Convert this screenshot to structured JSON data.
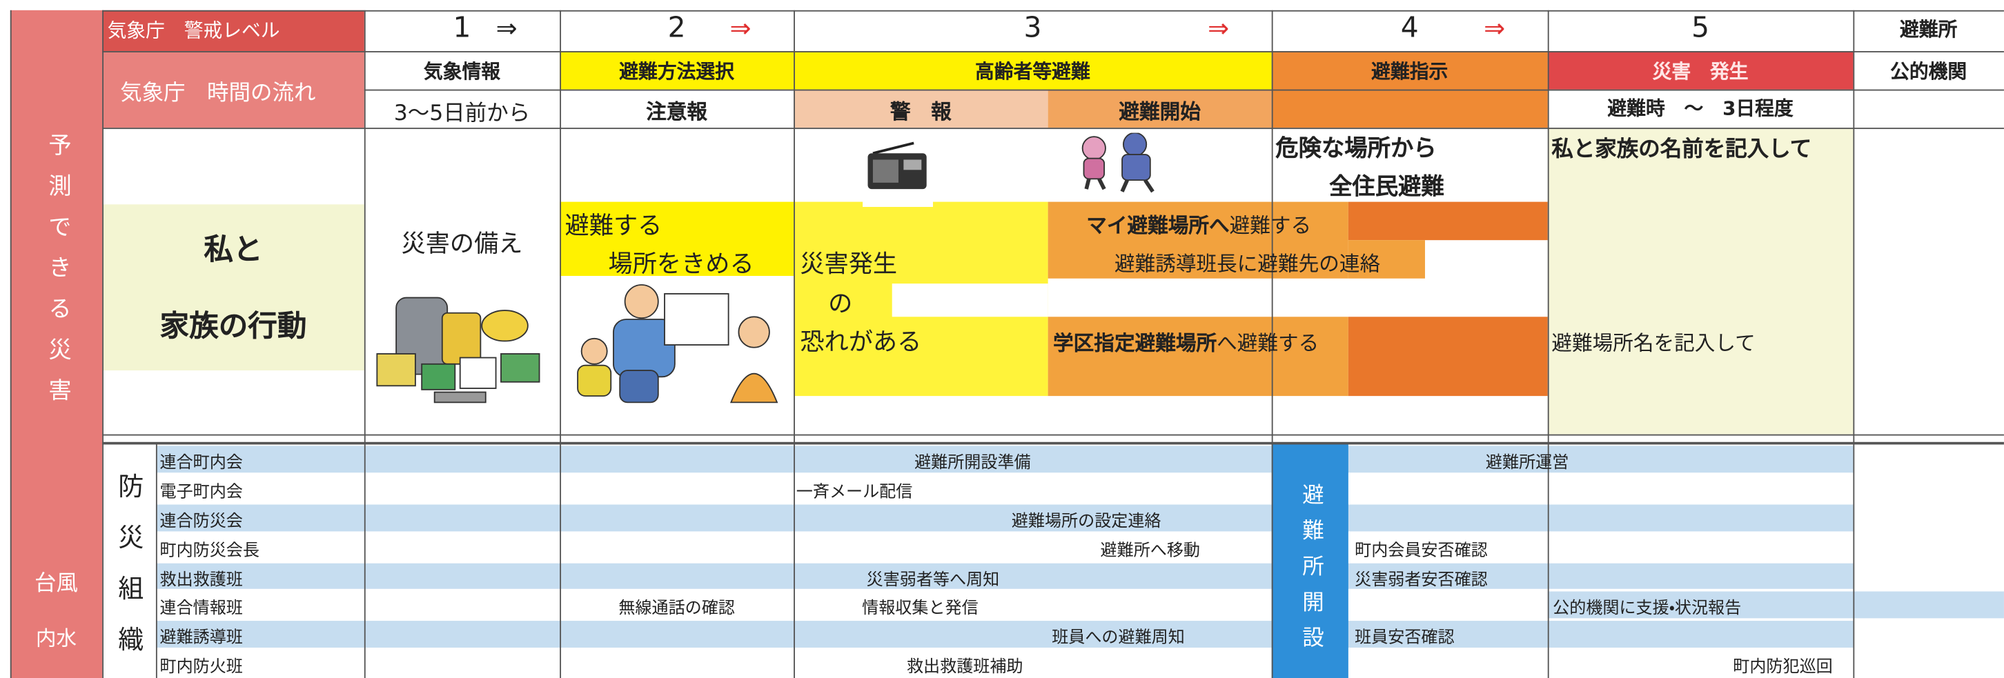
{
  "side": {
    "title": "予測できる災害",
    "hazards": [
      "台風",
      "内水"
    ]
  },
  "header": {
    "level_label": "気象庁　警戒レベル",
    "flow_label": "気象庁　時間の流れ",
    "levels": [
      {
        "number": "1",
        "arrow": "⇒"
      },
      {
        "number": "2",
        "arrow": "⇒"
      },
      {
        "number": "3",
        "arrow": "⇒"
      },
      {
        "number": "4",
        "arrow": "⇒"
      },
      {
        "number": "5"
      }
    ],
    "shelter": "避難所",
    "stages": [
      "気象情報",
      "避難方法選択",
      "高齢者等避難",
      "避難指示",
      "災害　発生",
      "公的機関"
    ],
    "substages": [
      "3～5日前から",
      "注意報",
      "警　報",
      "避難開始",
      "避難時　～　3日程度"
    ]
  },
  "actions": {
    "label": [
      "私と",
      "家族の行動"
    ],
    "prepare": "災害の備え",
    "decide": [
      "避難する",
      "場所をきめる"
    ],
    "risk": [
      "災害発生",
      "の",
      "恐れがある"
    ],
    "my_shelter": {
      "bold": "マイ避難場所へ",
      "rest": "避難する"
    },
    "contact": "避難誘導班長に避難先の連絡",
    "district_shelter": {
      "bold": "学区指定避難場所",
      "rest": "へ避難する"
    },
    "evacuate_all": [
      "危険な場所から",
      "全住民避難"
    ],
    "write_names": "私と家族の名前を記入して",
    "write_shelter": "避難場所名を記入して"
  },
  "organization": {
    "title": "防災組織",
    "shelter_open": "避難所開設",
    "rows": [
      {
        "unit": "連合町内会",
        "tasks": [
          "避難所開設準備",
          "避難所運営"
        ]
      },
      {
        "unit": "電子町内会",
        "tasks": [
          "一斉メール配信"
        ]
      },
      {
        "unit": "連合防災会",
        "tasks": [
          "避難場所の設定連絡"
        ]
      },
      {
        "unit": "町内防災会長",
        "tasks": [
          "避難所へ移動",
          "町内会員安否確認"
        ]
      },
      {
        "unit": "救出救護班",
        "tasks": [
          "災害弱者等へ周知",
          "災害弱者安否確認"
        ]
      },
      {
        "unit": "連合情報班",
        "tasks": [
          "無線通話の確認",
          "情報収集と発信",
          "公的機関に支援・状況報告"
        ]
      },
      {
        "unit": "避難誘導班",
        "tasks": [
          "班員への避難周知",
          "班員安否確認"
        ]
      },
      {
        "unit": "町内防火班",
        "tasks": [
          "救出救護班補助",
          "町内防犯巡回"
        ]
      }
    ]
  }
}
